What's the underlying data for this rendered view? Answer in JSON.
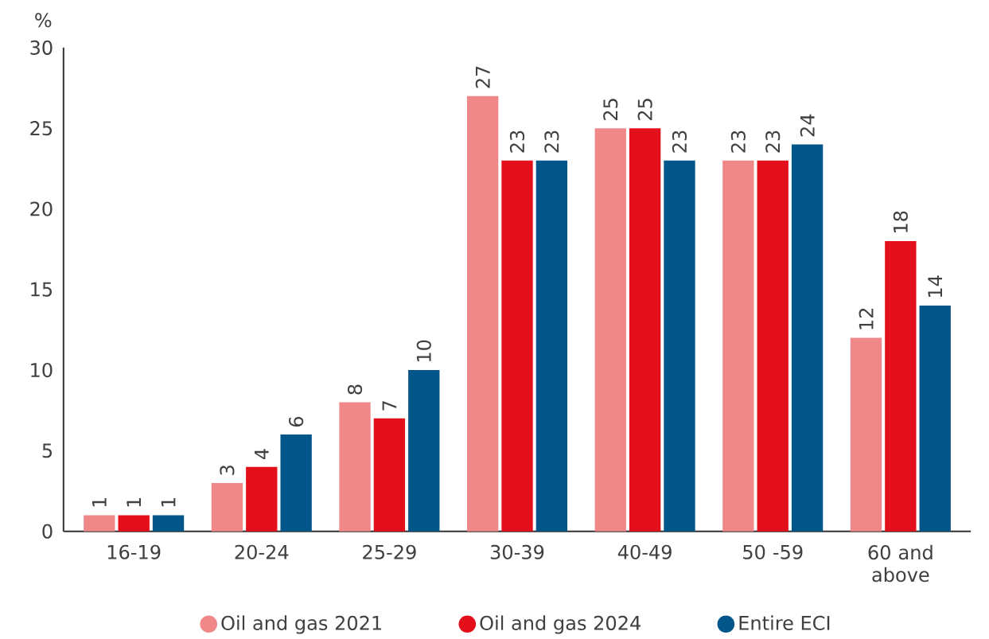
{
  "chart_data": {
    "type": "bar",
    "ylabel": "%",
    "categories": [
      "16-19",
      "20-24",
      "25-29",
      "30-39",
      "40-49",
      "50 -59",
      "60 and above"
    ],
    "series": [
      {
        "name": "Oil and gas 2021",
        "color": "#f0888a",
        "values": [
          1,
          3,
          8,
          27,
          25,
          23,
          12
        ]
      },
      {
        "name": "Oil and gas 2024",
        "color": "#e30f1a",
        "values": [
          1,
          4,
          7,
          23,
          25,
          23,
          18
        ]
      },
      {
        "name": "Entire ECI",
        "color": "#03568a",
        "values": [
          1,
          6,
          10,
          23,
          23,
          24,
          14
        ]
      }
    ],
    "ylim": [
      0,
      30
    ],
    "yticks": [
      0,
      5,
      10,
      15,
      20,
      25,
      30
    ],
    "data_labels": true,
    "grid": false,
    "legend": "bottom"
  }
}
